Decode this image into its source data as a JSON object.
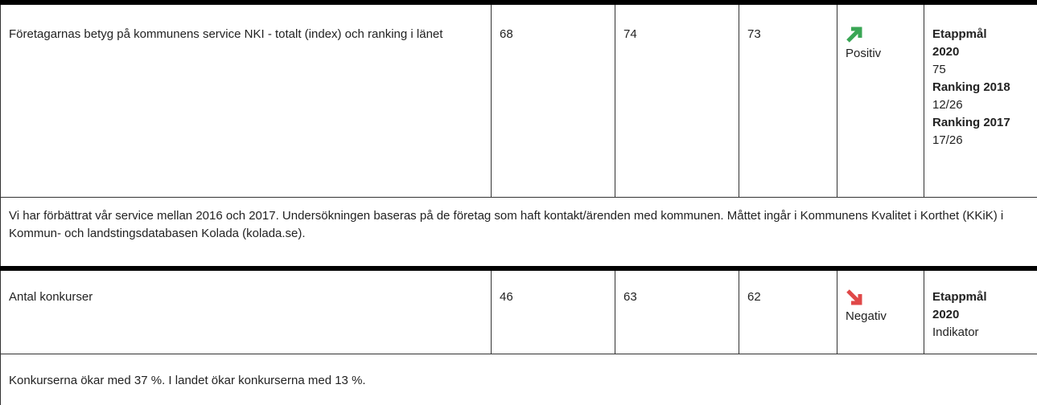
{
  "rows": [
    {
      "indicator": "Företagarnas betyg på kommunens service NKI - totalt (index) och ranking i länet",
      "values": [
        68,
        74,
        73
      ],
      "trend": "Positiv",
      "goals": [
        {
          "label": "Etappmål 2020",
          "value": "75"
        },
        {
          "label": "Ranking 2018",
          "value": "12/26"
        },
        {
          "label": "Ranking 2017",
          "value": "17/26"
        }
      ],
      "comment": "Vi har förbättrat vår service mellan 2016 och 2017. Undersökningen baseras på de företag som haft kontakt/ärenden med kommunen. Måttet ingår i Kommunens Kvalitet i Korthet (KKiK) i Kommun- och landstingsdatabasen Kolada (kolada.se)."
    },
    {
      "indicator": "Antal konkurser",
      "values": [
        46,
        63,
        62
      ],
      "trend": "Negativ",
      "goals": [
        {
          "label": "Etappmål 2020",
          "value": "Indikator"
        }
      ],
      "comment": "Konkurserna ökar med 37 %. I landet ökar konkurserna med 13 %."
    }
  ]
}
